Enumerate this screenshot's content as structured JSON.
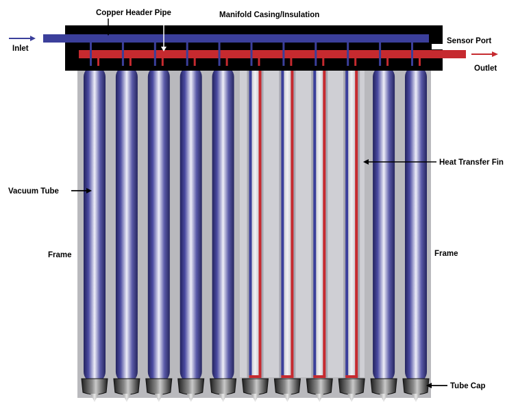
{
  "labels": {
    "copper_header_pipe": "Copper Header Pipe",
    "manifold_casing": "Manifold Casing/Insulation",
    "sensor_port": "Sensor Port",
    "inlet": "Inlet",
    "outlet": "Outlet",
    "heat_transfer_fin": "Heat Transfer Fin",
    "vacuum_tube": "Vacuum Tube",
    "frame_left": "Frame",
    "frame_right": "Frame",
    "tube_cap": "Tube Cap"
  },
  "colors": {
    "inlet_pipe": "#3b3f9b",
    "outlet_pipe": "#c62a2f",
    "manifold": "#000000",
    "frame": "#b8b8bc",
    "tube_glass": "#3c3c88",
    "fin": "#d9d9dc",
    "cap": "#2a2a2a"
  },
  "tubes": [
    {
      "id": 1,
      "style": "glass"
    },
    {
      "id": 2,
      "style": "glass"
    },
    {
      "id": 3,
      "style": "glass"
    },
    {
      "id": 4,
      "style": "glass"
    },
    {
      "id": 5,
      "style": "glass"
    },
    {
      "id": 6,
      "style": "cutaway"
    },
    {
      "id": 7,
      "style": "cutaway"
    },
    {
      "id": 8,
      "style": "cutaway"
    },
    {
      "id": 9,
      "style": "cutaway"
    },
    {
      "id": 10,
      "style": "glass"
    },
    {
      "id": 11,
      "style": "glass"
    }
  ]
}
